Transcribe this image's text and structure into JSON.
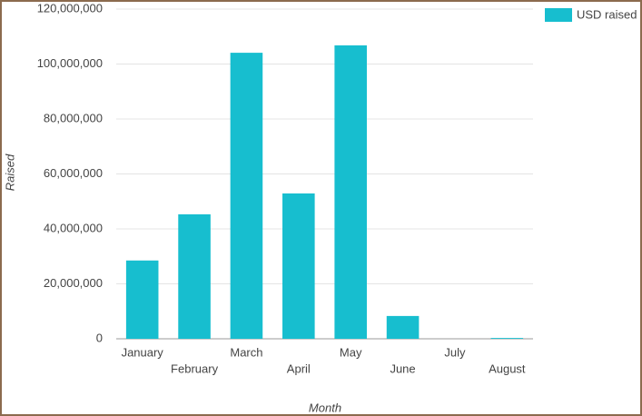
{
  "chart_data": {
    "type": "bar",
    "x_label": "Month",
    "y_label": "Raised",
    "categories": [
      "January",
      "February",
      "March",
      "April",
      "May",
      "June",
      "July",
      "August"
    ],
    "series": [
      {
        "name": "USD raised",
        "color": "#17becf",
        "values": [
          28500000,
          45300000,
          104100000,
          52900000,
          106800000,
          8300000,
          0,
          300000
        ]
      }
    ],
    "ylim": [
      0,
      120000000
    ],
    "yticks": [
      0,
      {
        "value": 20000000,
        "label": "20,000,000"
      },
      {
        "value": 40000000,
        "label": "40,000,000"
      },
      {
        "value": 60000000,
        "label": "60,000,000"
      },
      {
        "value": 80000000,
        "label": "80,000,000"
      },
      {
        "value": 100000000,
        "label": "100,000,000"
      },
      {
        "value": 120000000,
        "label": "120,000,000"
      }
    ],
    "grid": true,
    "legend": "top-right"
  }
}
